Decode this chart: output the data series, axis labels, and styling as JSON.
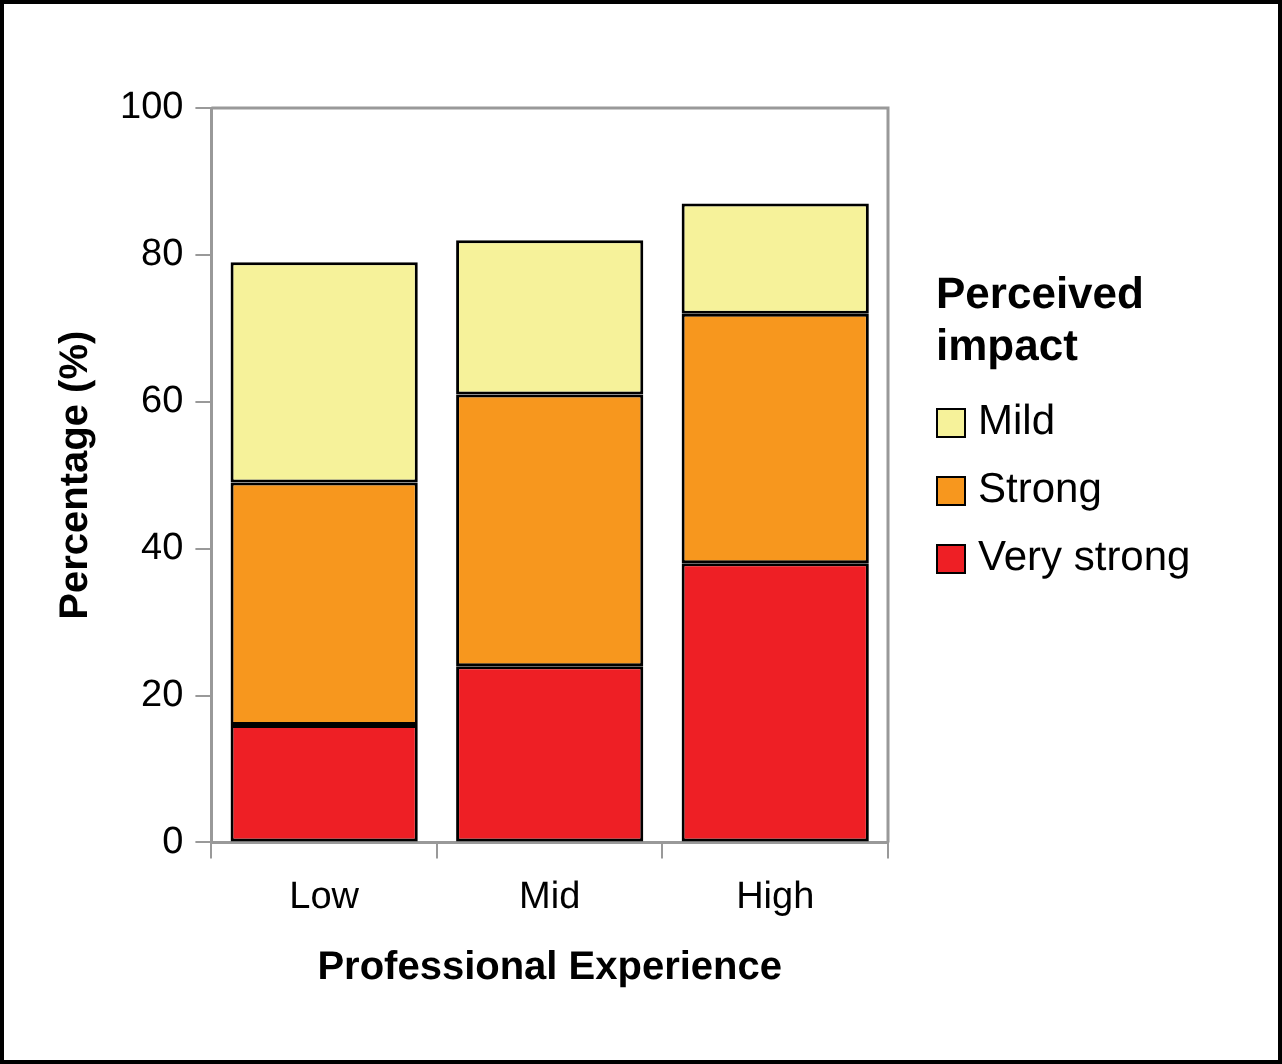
{
  "chart_data": {
    "type": "bar",
    "stacked": true,
    "xlabel": "Professional Experience",
    "ylabel": "Percentage (%)",
    "legend_title": "Perceived impact",
    "legend": "right",
    "categories": [
      "Low",
      "Mid",
      "High"
    ],
    "series": [
      {
        "name": "Very strong",
        "color": "#ee1f25",
        "values": [
          16,
          24,
          38
        ]
      },
      {
        "name": "Strong",
        "color": "#f7971e",
        "values": [
          33,
          37,
          34
        ]
      },
      {
        "name": "Mild",
        "color": "#f6f29a",
        "values": [
          30,
          21,
          15
        ]
      }
    ],
    "ylim": [
      0,
      100
    ],
    "yticks": [
      0,
      20,
      40,
      60,
      80,
      100
    ],
    "grid": false
  }
}
